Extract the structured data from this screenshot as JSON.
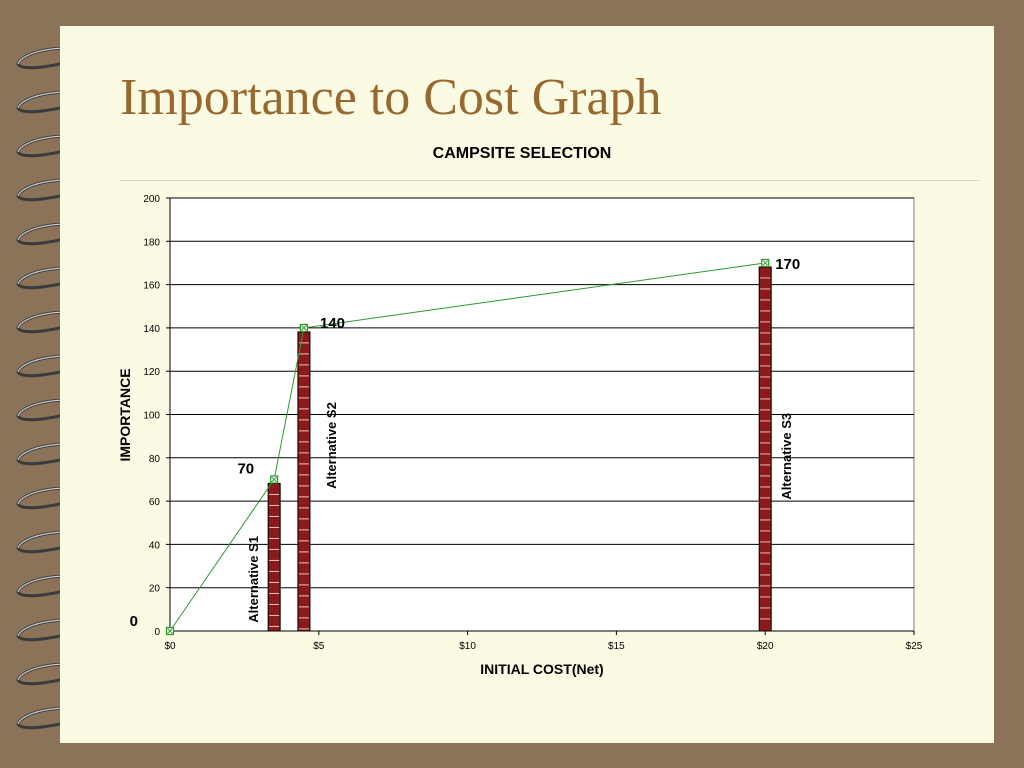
{
  "slide": {
    "title": "Importance to Cost Graph"
  },
  "colors": {
    "background": "#8a7359",
    "paper": "#fbfbe4",
    "title": "#98682f",
    "bar": "#8b1a1a",
    "line": "#2e9a2e"
  },
  "chart_data": {
    "type": "bar",
    "title": "CAMPSITE SELECTION",
    "xlabel": "INITIAL COST(Net)",
    "ylabel": "IMPORTANCE",
    "xlim": [
      0,
      25
    ],
    "ylim": [
      0,
      200
    ],
    "x_ticks": [
      "$0",
      "$5",
      "$10",
      "$15",
      "$20",
      "$25"
    ],
    "y_ticks": [
      "0",
      "20",
      "40",
      "60",
      "80",
      "100",
      "120",
      "140",
      "160",
      "180",
      "200"
    ],
    "grid": true,
    "bars": [
      {
        "name": "Alternative S1",
        "x": 3.5,
        "value": 70
      },
      {
        "name": "Alternative S2",
        "x": 4.5,
        "value": 140
      },
      {
        "name": "Alternative S3",
        "x": 20,
        "value": 170
      }
    ],
    "line": {
      "points": [
        {
          "x": 0,
          "y": 0
        },
        {
          "x": 3.5,
          "y": 70
        },
        {
          "x": 4.5,
          "y": 140
        },
        {
          "x": 20,
          "y": 170
        }
      ]
    },
    "data_labels": [
      "0",
      "70",
      "140",
      "170"
    ]
  }
}
